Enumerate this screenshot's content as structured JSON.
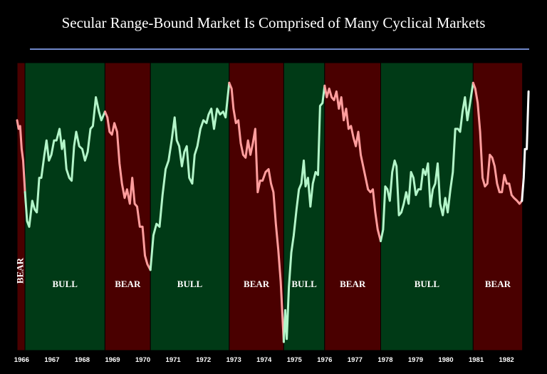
{
  "chart_data": {
    "type": "line",
    "title": "Secular Range-Bound Market Is Comprised of Many Cyclical Markets",
    "xlabel": "",
    "ylabel": "",
    "xlim": [
      1966.0,
      1982.9
    ],
    "ylim": [
      0,
      100
    ],
    "x_ticks": [
      "1966",
      "1967",
      "1968",
      "1969",
      "1970",
      "1971",
      "1972",
      "1973",
      "1974",
      "1975",
      "1976",
      "1977",
      "1978",
      "1979",
      "1980",
      "1981",
      "1982"
    ],
    "colors": {
      "bear_band": "#4a0000",
      "bull_band": "#003a16",
      "bear_line": "#ff9d9d",
      "bull_line": "#b3f5c9",
      "current_line": "#ffffff"
    },
    "regimes": [
      {
        "label": "BEAR",
        "type": "bear",
        "start": 1966.0,
        "end": 1966.26
      },
      {
        "label": "BULL",
        "type": "bull",
        "start": 1966.26,
        "end": 1968.9
      },
      {
        "label": "BEAR",
        "type": "bear",
        "start": 1968.9,
        "end": 1970.4
      },
      {
        "label": "BULL",
        "type": "bull",
        "start": 1970.4,
        "end": 1973.0
      },
      {
        "label": "BEAR",
        "type": "bear",
        "start": 1973.0,
        "end": 1974.8
      },
      {
        "label": "BULL",
        "type": "bull",
        "start": 1974.8,
        "end": 1976.15
      },
      {
        "label": "BEAR",
        "type": "bear",
        "start": 1976.15,
        "end": 1978.0
      },
      {
        "label": "BULL",
        "type": "bull",
        "start": 1978.0,
        "end": 1981.05
      },
      {
        "label": "BEAR",
        "type": "bear",
        "start": 1981.05,
        "end": 1982.68
      }
    ],
    "series": [
      {
        "type": "bear",
        "points": [
          [
            1966.0,
            80
          ],
          [
            1966.05,
            77
          ],
          [
            1966.1,
            78
          ],
          [
            1966.15,
            70
          ],
          [
            1966.2,
            66
          ],
          [
            1966.26,
            55
          ]
        ]
      },
      {
        "type": "bull",
        "points": [
          [
            1966.26,
            55
          ],
          [
            1966.33,
            45
          ],
          [
            1966.4,
            43
          ],
          [
            1966.5,
            52
          ],
          [
            1966.58,
            49
          ],
          [
            1966.65,
            48
          ],
          [
            1966.73,
            60
          ],
          [
            1966.8,
            60
          ],
          [
            1966.9,
            68
          ],
          [
            1966.97,
            73
          ],
          [
            1967.05,
            66
          ],
          [
            1967.13,
            68
          ],
          [
            1967.22,
            73
          ],
          [
            1967.3,
            73
          ],
          [
            1967.4,
            77
          ],
          [
            1967.48,
            70
          ],
          [
            1967.55,
            73
          ],
          [
            1967.63,
            63
          ],
          [
            1967.72,
            60
          ],
          [
            1967.8,
            59
          ],
          [
            1967.88,
            71
          ],
          [
            1967.95,
            76
          ],
          [
            1968.05,
            71
          ],
          [
            1968.15,
            70
          ],
          [
            1968.24,
            66
          ],
          [
            1968.33,
            69
          ],
          [
            1968.42,
            77
          ],
          [
            1968.5,
            78
          ],
          [
            1968.6,
            88
          ],
          [
            1968.7,
            83
          ],
          [
            1968.78,
            80
          ],
          [
            1968.9,
            83
          ]
        ]
      },
      {
        "type": "bear",
        "points": [
          [
            1968.9,
            83
          ],
          [
            1968.98,
            81
          ],
          [
            1969.05,
            76
          ],
          [
            1969.13,
            75
          ],
          [
            1969.21,
            79
          ],
          [
            1969.3,
            76
          ],
          [
            1969.38,
            65
          ],
          [
            1969.46,
            58
          ],
          [
            1969.55,
            53
          ],
          [
            1969.63,
            56
          ],
          [
            1969.72,
            51
          ],
          [
            1969.8,
            60
          ],
          [
            1969.88,
            51
          ],
          [
            1969.96,
            50
          ],
          [
            1970.05,
            43
          ],
          [
            1970.14,
            43
          ],
          [
            1970.22,
            33
          ],
          [
            1970.3,
            30
          ],
          [
            1970.4,
            28
          ]
        ]
      },
      {
        "type": "bull",
        "points": [
          [
            1970.4,
            28
          ],
          [
            1970.5,
            40
          ],
          [
            1970.6,
            44
          ],
          [
            1970.7,
            43
          ],
          [
            1970.8,
            54
          ],
          [
            1970.9,
            63
          ],
          [
            1971.0,
            66
          ],
          [
            1971.1,
            73
          ],
          [
            1971.2,
            81
          ],
          [
            1971.27,
            73
          ],
          [
            1971.35,
            71
          ],
          [
            1971.44,
            64
          ],
          [
            1971.52,
            69
          ],
          [
            1971.6,
            71
          ],
          [
            1971.68,
            60
          ],
          [
            1971.78,
            58
          ],
          [
            1971.86,
            68
          ],
          [
            1971.95,
            71
          ],
          [
            1972.05,
            77
          ],
          [
            1972.15,
            80
          ],
          [
            1972.25,
            79
          ],
          [
            1972.32,
            82
          ],
          [
            1972.41,
            84
          ],
          [
            1972.5,
            77
          ],
          [
            1972.6,
            84
          ],
          [
            1972.7,
            82
          ],
          [
            1972.8,
            83
          ],
          [
            1972.88,
            81
          ],
          [
            1973.0,
            93
          ]
        ]
      },
      {
        "type": "bear",
        "points": [
          [
            1973.0,
            93
          ],
          [
            1973.08,
            91
          ],
          [
            1973.14,
            84
          ],
          [
            1973.22,
            79
          ],
          [
            1973.3,
            80
          ],
          [
            1973.38,
            72
          ],
          [
            1973.46,
            68
          ],
          [
            1973.54,
            67
          ],
          [
            1973.62,
            73
          ],
          [
            1973.7,
            68
          ],
          [
            1973.78,
            72
          ],
          [
            1973.86,
            77
          ],
          [
            1973.94,
            55
          ],
          [
            1974.02,
            59
          ],
          [
            1974.1,
            59
          ],
          [
            1974.2,
            62
          ],
          [
            1974.3,
            63
          ],
          [
            1974.38,
            58
          ],
          [
            1974.46,
            55
          ],
          [
            1974.54,
            44
          ],
          [
            1974.62,
            35
          ],
          [
            1974.7,
            24
          ],
          [
            1974.8,
            3
          ]
        ]
      },
      {
        "type": "bull",
        "points": [
          [
            1974.8,
            3
          ],
          [
            1974.85,
            14
          ],
          [
            1974.9,
            4
          ],
          [
            1974.97,
            22
          ],
          [
            1975.05,
            34
          ],
          [
            1975.13,
            40
          ],
          [
            1975.22,
            49
          ],
          [
            1975.3,
            56
          ],
          [
            1975.38,
            58
          ],
          [
            1975.46,
            66
          ],
          [
            1975.52,
            57
          ],
          [
            1975.6,
            60
          ],
          [
            1975.68,
            50
          ],
          [
            1975.76,
            58
          ],
          [
            1975.85,
            62
          ],
          [
            1975.93,
            61
          ],
          [
            1976.0,
            85
          ],
          [
            1976.08,
            86
          ],
          [
            1976.15,
            92
          ]
        ]
      },
      {
        "type": "bear",
        "points": [
          [
            1976.15,
            92
          ],
          [
            1976.22,
            88
          ],
          [
            1976.3,
            91
          ],
          [
            1976.38,
            88
          ],
          [
            1976.46,
            87
          ],
          [
            1976.54,
            90
          ],
          [
            1976.62,
            84
          ],
          [
            1976.7,
            88
          ],
          [
            1976.78,
            80
          ],
          [
            1976.86,
            84
          ],
          [
            1976.94,
            77
          ],
          [
            1977.02,
            78
          ],
          [
            1977.1,
            74
          ],
          [
            1977.18,
            71
          ],
          [
            1977.26,
            76
          ],
          [
            1977.34,
            68
          ],
          [
            1977.42,
            64
          ],
          [
            1977.5,
            60
          ],
          [
            1977.58,
            56
          ],
          [
            1977.66,
            55
          ],
          [
            1977.74,
            56
          ],
          [
            1977.82,
            48
          ],
          [
            1977.9,
            42
          ],
          [
            1978.0,
            38
          ]
        ]
      },
      {
        "type": "bull",
        "points": [
          [
            1978.0,
            38
          ],
          [
            1978.08,
            42
          ],
          [
            1978.15,
            57
          ],
          [
            1978.22,
            56
          ],
          [
            1978.3,
            52
          ],
          [
            1978.38,
            62
          ],
          [
            1978.46,
            66
          ],
          [
            1978.52,
            64
          ],
          [
            1978.6,
            47
          ],
          [
            1978.68,
            48
          ],
          [
            1978.76,
            51
          ],
          [
            1978.84,
            55
          ],
          [
            1978.92,
            51
          ],
          [
            1979.0,
            62
          ],
          [
            1979.08,
            60
          ],
          [
            1979.16,
            54
          ],
          [
            1979.24,
            56
          ],
          [
            1979.32,
            56
          ],
          [
            1979.4,
            63
          ],
          [
            1979.48,
            61
          ],
          [
            1979.56,
            65
          ],
          [
            1979.64,
            50
          ],
          [
            1979.72,
            56
          ],
          [
            1979.8,
            58
          ],
          [
            1979.88,
            65
          ],
          [
            1979.96,
            51
          ],
          [
            1980.05,
            47
          ],
          [
            1980.13,
            53
          ],
          [
            1980.21,
            48
          ],
          [
            1980.3,
            56
          ],
          [
            1980.38,
            62
          ],
          [
            1980.46,
            77
          ],
          [
            1980.55,
            77
          ],
          [
            1980.62,
            76
          ],
          [
            1980.7,
            83
          ],
          [
            1980.78,
            88
          ],
          [
            1980.86,
            80
          ],
          [
            1980.95,
            86
          ],
          [
            1981.05,
            93
          ]
        ]
      },
      {
        "type": "bear",
        "points": [
          [
            1981.05,
            93
          ],
          [
            1981.12,
            91
          ],
          [
            1981.2,
            86
          ],
          [
            1981.28,
            76
          ],
          [
            1981.36,
            60
          ],
          [
            1981.44,
            57
          ],
          [
            1981.52,
            58
          ],
          [
            1981.6,
            68
          ],
          [
            1981.68,
            67
          ],
          [
            1981.76,
            64
          ],
          [
            1981.84,
            58
          ],
          [
            1981.92,
            55
          ],
          [
            1982.0,
            55
          ],
          [
            1982.08,
            61
          ],
          [
            1982.16,
            58
          ],
          [
            1982.24,
            58
          ],
          [
            1982.32,
            54
          ],
          [
            1982.4,
            53
          ],
          [
            1982.5,
            52
          ],
          [
            1982.58,
            51
          ],
          [
            1982.66,
            52
          ]
        ]
      },
      {
        "type": "current",
        "points": [
          [
            1982.66,
            52
          ],
          [
            1982.72,
            60
          ],
          [
            1982.76,
            70
          ],
          [
            1982.82,
            70
          ],
          [
            1982.88,
            90
          ]
        ]
      }
    ]
  }
}
